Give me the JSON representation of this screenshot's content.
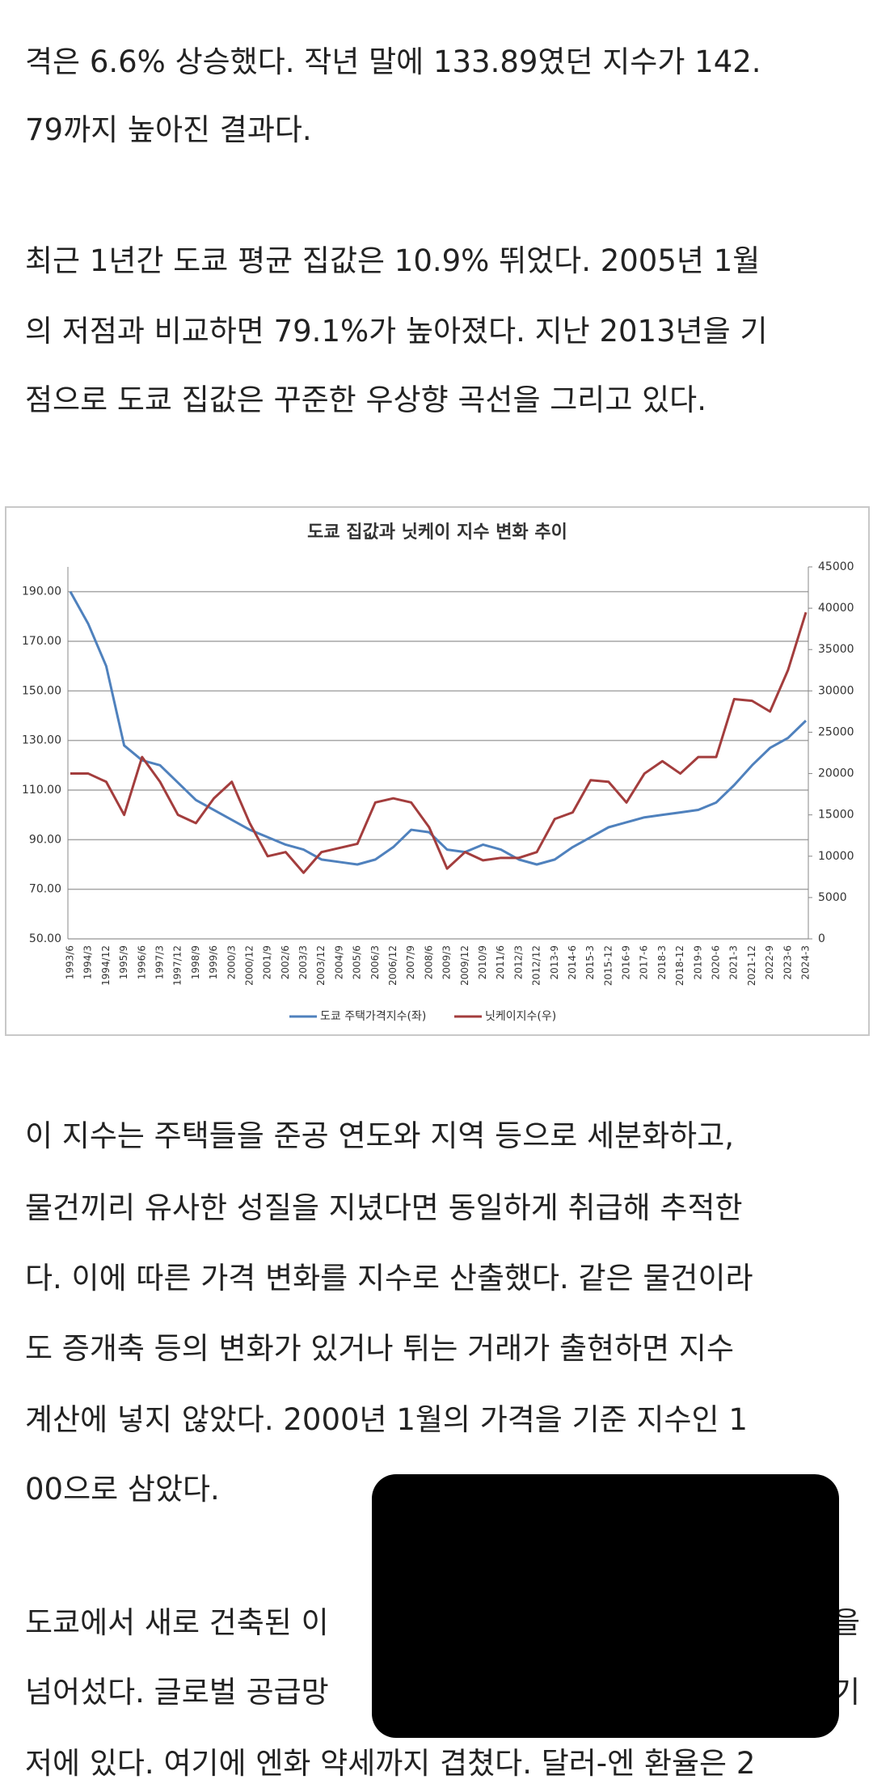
{
  "article": {
    "paragraphs": [
      {
        "lines": [
          "격은 6.6% 상승했다. 작년 말에 133.89였던 지수가 142.",
          "79까지 높아진 결과다."
        ]
      },
      {
        "lines": [
          "최근 1년간 도쿄 평균 집값은 10.9% 뛰었다. 2005년 1월",
          "의 저점과 비교하면 79.1%가 높아졌다. 지난 2013년을 기",
          "점으로 도쿄 집값은 꾸준한 우상향 곡선을 그리고 있다."
        ]
      },
      {
        "lines": [
          "이 지수는 주택들을 준공 연도와 지역 등으로 세분화하고,",
          "물건끼리 유사한 성질을 지녔다면 동일하게 취급해 추적한",
          "다. 이에 따른 가격 변화를 지수로 산출했다. 같은 물건이라",
          "도 증개축 등의 변화가 있거나 튀는 거래가 출현하면 지수",
          "계산에 넣지 않았다. 2000년 1월의 가격을 기준 지수인 1",
          "00으로 삼았다."
        ]
      },
      {
        "lines": [
          "도쿄에서 새로 건축된 이",
          "넘어섰다. 글로벌 공급망",
          "저에 있다. 여기에 엔화 약세까지 겹쳤다. 달러-엔 환율은 2"
        ],
        "right_fragments": [
          "을",
          "기"
        ]
      }
    ]
  },
  "chart_data": {
    "type": "line",
    "title": "도쿄 집값과 닛케이 지수 변화 추이",
    "categories": [
      "1993/6",
      "1994/3",
      "1994/12",
      "1995/9",
      "1996/6",
      "1997/3",
      "1997/12",
      "1998/9",
      "1999/6",
      "2000/3",
      "2000/12",
      "2001/9",
      "2002/6",
      "2003/3",
      "2003/12",
      "2004/9",
      "2005/6",
      "2006/3",
      "2006/12",
      "2007/9",
      "2008/6",
      "2009/3",
      "2009/12",
      "2010/9",
      "2011/6",
      "2012/3",
      "2012/12",
      "2013-9",
      "2014-6",
      "2015-3",
      "2015-12",
      "2016-9",
      "2017-6",
      "2018-3",
      "2018-12",
      "2019-9",
      "2020-6",
      "2021-3",
      "2021-12",
      "2022-9",
      "2023-6",
      "2024-3"
    ],
    "series": [
      {
        "name": "도쿄 주택가격지수(좌)",
        "color": "#4f81bd",
        "values": [
          190,
          177,
          160,
          128,
          122,
          120,
          113,
          106,
          102,
          98,
          94,
          91,
          88,
          86,
          82,
          81,
          80,
          82,
          87,
          94,
          93,
          86,
          85,
          88,
          86,
          82,
          80,
          82,
          87,
          91,
          95,
          97,
          99,
          100,
          101,
          102,
          105,
          112,
          120,
          127,
          131,
          138
        ]
      },
      {
        "name": "닛케이지수(우)",
        "color": "#a33d3d",
        "axis": "y2",
        "values": [
          20000,
          20000,
          19000,
          15000,
          22000,
          19000,
          15000,
          14000,
          17000,
          19000,
          14000,
          10000,
          10500,
          8000,
          10500,
          11000,
          11500,
          16500,
          17000,
          16500,
          13500,
          8500,
          10500,
          9500,
          9800,
          9800,
          10500,
          14500,
          15300,
          19200,
          19000,
          16500,
          20000,
          21500,
          20000,
          22000,
          22000,
          29000,
          28800,
          27500,
          32500,
          39500
        ]
      }
    ],
    "ylim": [
      50,
      200
    ],
    "yticks": [
      {
        "value": 50,
        "label": "50.00"
      },
      {
        "value": 70,
        "label": "70.00"
      },
      {
        "value": 90,
        "label": "90.00"
      },
      {
        "value": 110,
        "label": "110.00"
      },
      {
        "value": 130,
        "label": "130.00"
      },
      {
        "value": 150,
        "label": "150.00"
      },
      {
        "value": 170,
        "label": "170.00"
      },
      {
        "value": 190,
        "label": "190.00"
      }
    ],
    "y2lim": [
      0,
      45000
    ],
    "y2ticks": [
      0,
      5000,
      10000,
      15000,
      20000,
      25000,
      30000,
      35000,
      40000,
      45000
    ],
    "grid": true,
    "legend": "bottom"
  }
}
